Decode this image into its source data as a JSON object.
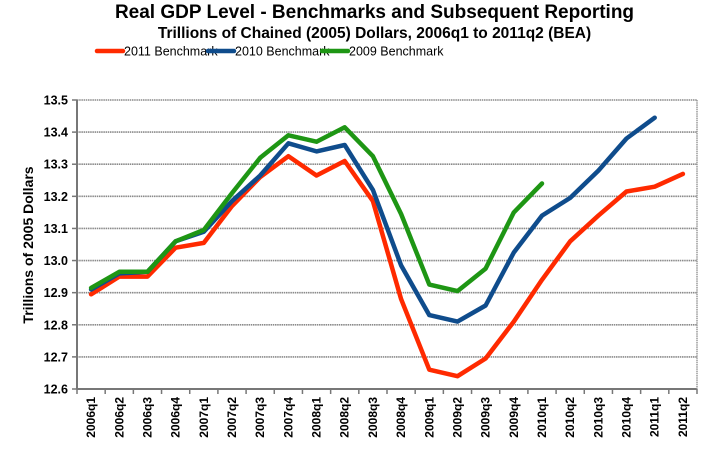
{
  "chart_data": {
    "type": "line",
    "title": "Real GDP Level - Benchmarks and Subsequent Reporting",
    "subtitle": "Trillions of Chained (2005) Dollars, 2006q1 to 2011q2 (BEA)",
    "xlabel": "",
    "ylabel": "Trillions of 2005 Dollars",
    "ylim": [
      12.6,
      13.5
    ],
    "yticks": [
      "12.6",
      "12.7",
      "12.8",
      "12.9",
      "13.0",
      "13.1",
      "13.2",
      "13.3",
      "13.4",
      "13.5"
    ],
    "grid": true,
    "legend_position": "top",
    "categories": [
      "2006q1",
      "2006q2",
      "2006q3",
      "2006q4",
      "2007q1",
      "2007q2",
      "2007q3",
      "2007q4",
      "2008q1",
      "2008q2",
      "2008q3",
      "2008q4",
      "2009q1",
      "2009q2",
      "2009q3",
      "2009q4",
      "2010q1",
      "2010q2",
      "2010q3",
      "2010q4",
      "2011q1",
      "2011q2"
    ],
    "series": [
      {
        "name": "2011 Benchmark",
        "color": "#ff2a00",
        "values": [
          12.895,
          12.95,
          12.95,
          13.04,
          13.055,
          13.17,
          13.26,
          13.325,
          13.265,
          13.31,
          13.185,
          12.88,
          12.66,
          12.64,
          12.695,
          12.81,
          12.94,
          13.06,
          13.14,
          13.215,
          13.23,
          13.27
        ]
      },
      {
        "name": "2010 Benchmark",
        "color": "#0f4c8c",
        "values": [
          12.91,
          12.96,
          12.965,
          13.06,
          13.09,
          13.185,
          13.265,
          13.365,
          13.34,
          13.36,
          13.22,
          12.985,
          12.83,
          12.81,
          12.86,
          13.025,
          13.14,
          13.195,
          13.28,
          13.38,
          13.445,
          null
        ]
      },
      {
        "name": "2009 Benchmark",
        "color": "#1e9614",
        "values": [
          12.915,
          12.965,
          12.965,
          13.06,
          13.095,
          13.21,
          13.32,
          13.39,
          13.37,
          13.415,
          13.325,
          13.145,
          12.925,
          12.905,
          12.975,
          13.15,
          13.24,
          null,
          null,
          null,
          null,
          null
        ]
      }
    ]
  }
}
